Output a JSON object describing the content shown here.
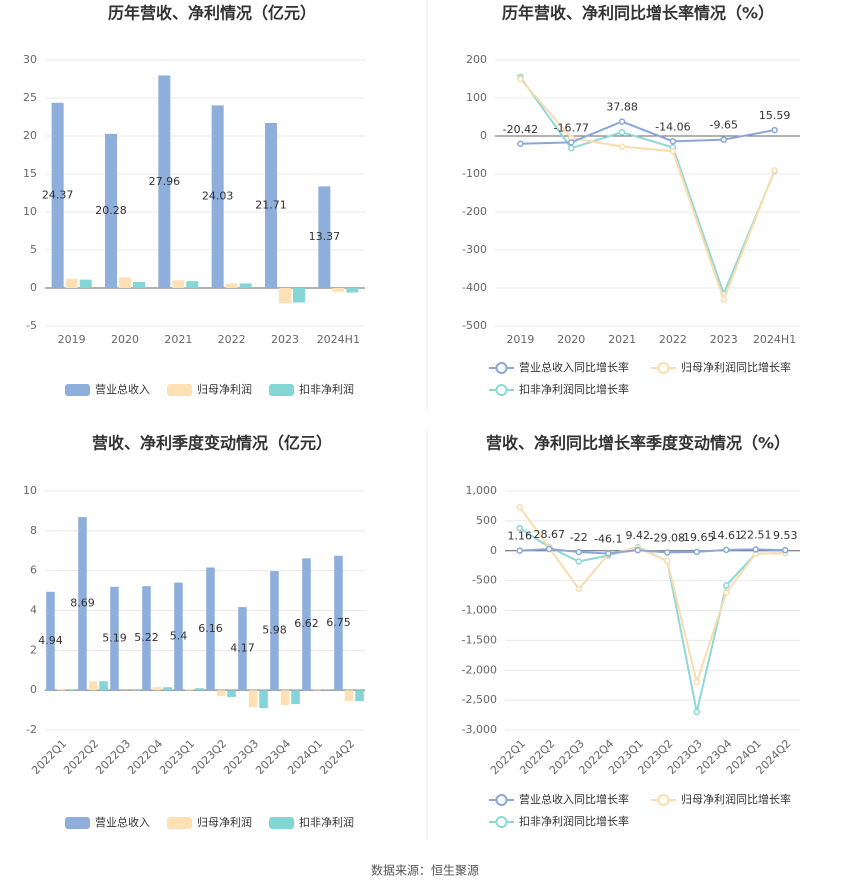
{
  "chart_data": [
    {
      "type": "bar",
      "title": "历年营收、净利情况（亿元）",
      "categories": [
        "2019",
        "2020",
        "2021",
        "2022",
        "2023",
        "2024H1"
      ],
      "series": [
        {
          "name": "营业总收入",
          "color": "#8eaedc",
          "labels": true,
          "values": [
            24.37,
            20.28,
            27.96,
            24.03,
            21.71,
            13.37
          ]
        },
        {
          "name": "归母净利润",
          "color": "#fde1b4",
          "values": [
            1.2,
            1.4,
            1.0,
            0.6,
            -2.0,
            -0.5
          ]
        },
        {
          "name": "扣非净利润",
          "color": "#84d5d5",
          "values": [
            1.1,
            0.8,
            0.9,
            0.6,
            -1.9,
            -0.6
          ]
        }
      ],
      "ylim": [
        -5,
        30
      ],
      "yticks": [
        -5,
        0,
        5,
        10,
        15,
        20,
        25,
        30
      ],
      "grid": true
    },
    {
      "type": "line",
      "title": "历年营收、净利同比增长率情况（%）",
      "categories": [
        "2019",
        "2020",
        "2021",
        "2022",
        "2023",
        "2024H1"
      ],
      "series": [
        {
          "name": "营业总收入同比增长率",
          "color": "#8aa7d8",
          "labels": true,
          "values": [
            -20.42,
            -16.77,
            37.88,
            -14.06,
            -9.65,
            15.59
          ]
        },
        {
          "name": "归母净利润同比增长率",
          "color": "#fbdcae",
          "values": [
            150,
            -5,
            -28,
            -40,
            -430,
            -90
          ]
        },
        {
          "name": "扣非净利润同比增长率",
          "color": "#8dd8d8",
          "values": [
            155,
            -32,
            10,
            -30,
            -415,
            -92
          ]
        }
      ],
      "ylim": [
        -500,
        200
      ],
      "yticks": [
        -500,
        -400,
        -300,
        -200,
        -100,
        0,
        100,
        200
      ],
      "grid": true
    },
    {
      "type": "bar",
      "title": "营收、净利季度变动情况（亿元）",
      "categories": [
        "2022Q1",
        "2022Q2",
        "2022Q3",
        "2022Q4",
        "2023Q1",
        "2023Q2",
        "2023Q3",
        "2023Q4",
        "2024Q1",
        "2024Q2"
      ],
      "series": [
        {
          "name": "营业总收入",
          "color": "#8eaedc",
          "labels": true,
          "values": [
            4.94,
            8.69,
            5.19,
            5.22,
            5.4,
            6.16,
            4.17,
            5.98,
            6.62,
            6.75
          ]
        },
        {
          "name": "归母净利润",
          "color": "#fde1b4",
          "values": [
            0.05,
            0.45,
            0.01,
            0.15,
            0.05,
            -0.3,
            -0.85,
            -0.75,
            0.02,
            -0.55
          ]
        },
        {
          "name": "扣非净利润",
          "color": "#84d5d5",
          "values": [
            0.05,
            0.45,
            -0.02,
            0.15,
            0.1,
            -0.35,
            -0.9,
            -0.7,
            0.01,
            -0.55
          ]
        }
      ],
      "ylim": [
        -2,
        10
      ],
      "yticks": [
        -2,
        0,
        2,
        4,
        6,
        8,
        10
      ],
      "grid": true
    },
    {
      "type": "line",
      "title": "营收、净利同比增长率季度变动情况（%）",
      "categories": [
        "2022Q1",
        "2022Q2",
        "2022Q3",
        "2022Q4",
        "2023Q1",
        "2023Q2",
        "2023Q3",
        "2023Q4",
        "2024Q1",
        "2024Q2"
      ],
      "series": [
        {
          "name": "营业总收入同比增长率",
          "color": "#8aa7d8",
          "labels": true,
          "values": [
            1.16,
            28.67,
            -22.0,
            -46.1,
            9.42,
            -29.08,
            -19.65,
            14.61,
            22.51,
            9.53
          ]
        },
        {
          "name": "归母净利润同比增长率",
          "color": "#fbdcae",
          "values": [
            730,
            50,
            -640,
            -60,
            50,
            -170,
            -2200,
            -700,
            -50,
            -40
          ]
        },
        {
          "name": "扣非净利润同比增长率",
          "color": "#8dd8d8",
          "values": [
            380,
            60,
            -180,
            -80,
            60,
            -170,
            -2700,
            -580,
            -50,
            -40
          ]
        }
      ],
      "ylim": [
        -3000,
        1000
      ],
      "yticks": [
        {
          "value": -3000,
          "label": "-3,000"
        },
        {
          "value": -2500,
          "label": "-2,500"
        },
        {
          "value": -2000,
          "label": "-2,000"
        },
        {
          "value": -1500,
          "label": "-1,500"
        },
        {
          "value": -1000,
          "label": "-1,000"
        },
        -500,
        0,
        500,
        {
          "value": 1000,
          "label": "1,000"
        }
      ],
      "grid": true
    }
  ],
  "source": "数据来源：恒生聚源"
}
